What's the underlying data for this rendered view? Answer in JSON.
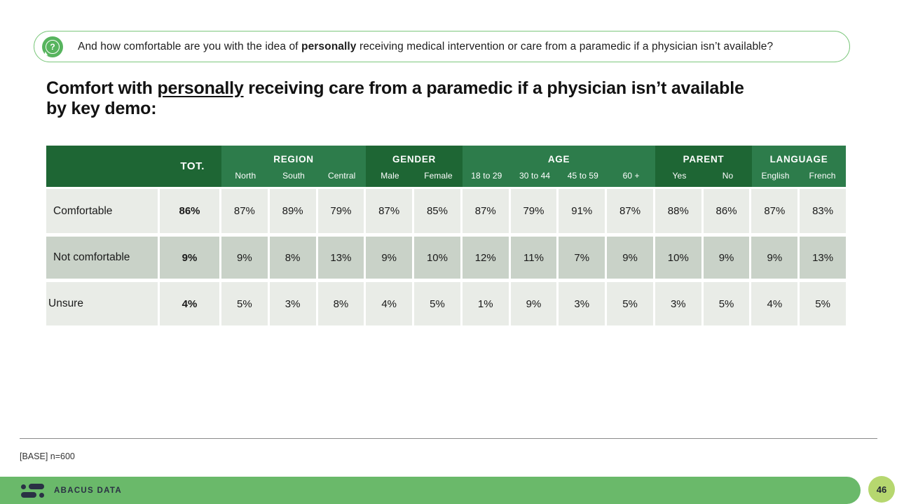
{
  "question": {
    "prefix": "And how comfortable are you with the idea of ",
    "bold": "personally",
    "suffix": " receiving medical intervention or care from a paramedic if a physician isn’t available?"
  },
  "title": {
    "pre": "Comfort with ",
    "underlined": "personally",
    "post": " receiving care from a paramedic if a physician isn’t available by key demo:"
  },
  "icons": {
    "question_mark": "?"
  },
  "table": {
    "tot_label": "TOT.",
    "groups": [
      {
        "label": "REGION",
        "cols": [
          "North",
          "South",
          "Central"
        ]
      },
      {
        "label": "GENDER",
        "cols": [
          "Male",
          "Female"
        ]
      },
      {
        "label": "AGE",
        "cols": [
          "18 to 29",
          "30 to 44",
          "45 to 59",
          "60 +"
        ]
      },
      {
        "label": "PARENT",
        "cols": [
          "Yes",
          "No"
        ]
      },
      {
        "label": "LANGUAGE",
        "cols": [
          "English",
          "French"
        ]
      }
    ],
    "rows": [
      {
        "label": "Comfortable",
        "tot": "86%",
        "values": [
          "87%",
          "89%",
          "79%",
          "87%",
          "85%",
          "87%",
          "79%",
          "91%",
          "87%",
          "88%",
          "86%",
          "87%",
          "83%"
        ]
      },
      {
        "label": "Not comfortable",
        "tot": "9%",
        "values": [
          "9%",
          "8%",
          "13%",
          "9%",
          "10%",
          "12%",
          "11%",
          "7%",
          "9%",
          "10%",
          "9%",
          "9%",
          "13%"
        ]
      },
      {
        "label": "Unsure",
        "tot": "4%",
        "values": [
          "5%",
          "3%",
          "8%",
          "4%",
          "5%",
          "1%",
          "9%",
          "3%",
          "5%",
          "3%",
          "5%",
          "4%",
          "5%"
        ]
      }
    ]
  },
  "footer": {
    "base_note": "[BASE] n=600"
  },
  "bottom_bar": {
    "brand": "ABACUS DATA",
    "page_number": "46"
  },
  "colors": {
    "header_dark": "#1e6634",
    "header_light": "#2d7c4b",
    "row_light": "#e9ece7",
    "row_mid": "#c9d2c8",
    "bar_green": "#6ab96a",
    "badge_green": "#b6d76f",
    "icon_green": "#57b45e",
    "box_border": "#7cc77c",
    "navy": "#2a3044"
  }
}
